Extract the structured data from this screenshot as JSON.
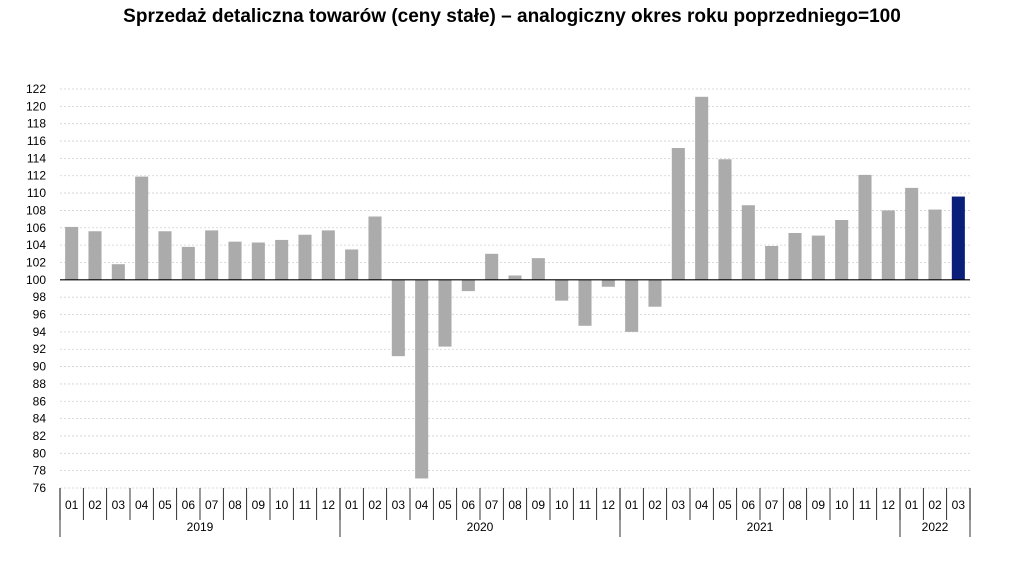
{
  "chart_data": {
    "type": "bar",
    "title": "Sprzedaż detaliczna towarów (ceny stałe) – analogiczny okres roku poprzedniego=100",
    "baseline": 100,
    "ylim": [
      76,
      122
    ],
    "ytick_step": 2,
    "colors": {
      "bar": "#ababab",
      "highlight": "#0a1f7a",
      "grid": "#d0d0d0",
      "axis": "#000000"
    },
    "highlight_last": true,
    "years": [
      {
        "year": "2019",
        "months": [
          "01",
          "02",
          "03",
          "04",
          "05",
          "06",
          "07",
          "08",
          "09",
          "10",
          "11",
          "12"
        ],
        "values": [
          106.1,
          105.6,
          101.8,
          111.9,
          105.6,
          103.8,
          105.7,
          104.4,
          104.3,
          104.6,
          105.2,
          105.7
        ]
      },
      {
        "year": "2020",
        "months": [
          "01",
          "02",
          "03",
          "04",
          "05",
          "06",
          "07",
          "08",
          "09",
          "10",
          "11",
          "12"
        ],
        "values": [
          103.5,
          107.3,
          91.2,
          77.1,
          92.3,
          98.7,
          103.0,
          100.5,
          102.5,
          97.6,
          94.7,
          99.2
        ]
      },
      {
        "year": "2021",
        "months": [
          "01",
          "02",
          "03",
          "04",
          "05",
          "06",
          "07",
          "08",
          "09",
          "10",
          "11",
          "12"
        ],
        "values": [
          94.0,
          96.9,
          115.2,
          121.1,
          113.9,
          108.6,
          103.9,
          105.4,
          105.1,
          106.9,
          112.1,
          108.0
        ]
      },
      {
        "year": "2022",
        "months": [
          "01",
          "02",
          "03"
        ],
        "values": [
          110.6,
          108.1,
          109.6
        ]
      }
    ]
  }
}
